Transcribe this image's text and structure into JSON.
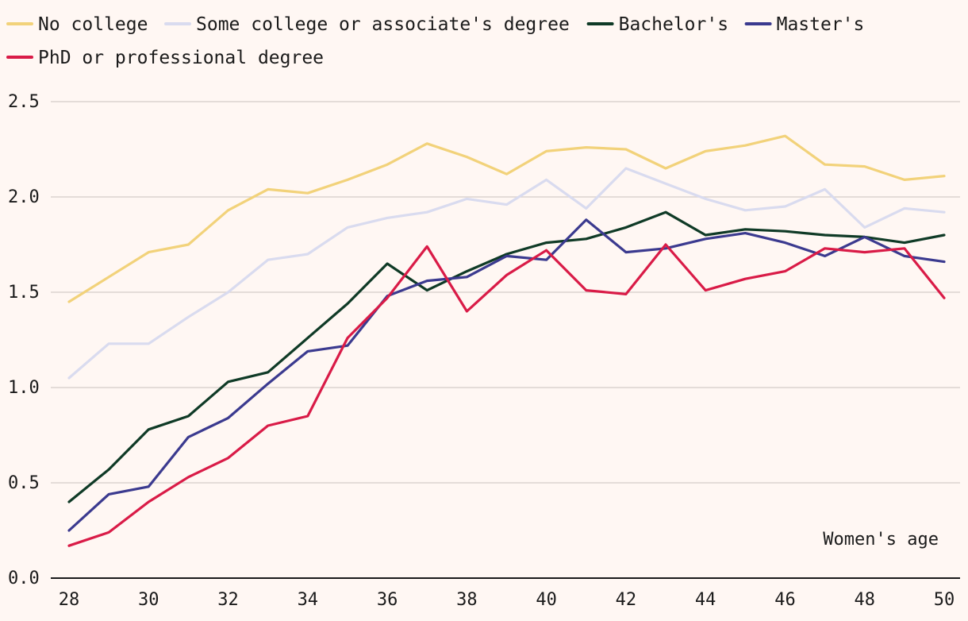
{
  "chart_data": {
    "type": "line",
    "title": "",
    "xlabel": "",
    "ylabel": "",
    "annotation": "Women's age",
    "x": [
      28,
      29,
      30,
      31,
      32,
      33,
      34,
      35,
      36,
      37,
      38,
      39,
      40,
      41,
      42,
      43,
      44,
      45,
      46,
      47,
      48,
      49,
      50
    ],
    "xlim": [
      28,
      50
    ],
    "ylim": [
      0,
      2.5
    ],
    "x_ticks": [
      "28",
      "30",
      "32",
      "34",
      "36",
      "38",
      "40",
      "42",
      "44",
      "46",
      "48",
      "50"
    ],
    "y_ticks": [
      "0.0",
      "0.5",
      "1.0",
      "1.5",
      "2.0",
      "2.5"
    ],
    "grid": "horizontal",
    "legend_position": "top",
    "series": [
      {
        "name": "No college",
        "color": "#f2d27a",
        "values": [
          1.45,
          1.58,
          1.71,
          1.75,
          1.93,
          2.04,
          2.02,
          2.09,
          2.17,
          2.28,
          2.21,
          2.12,
          2.24,
          2.26,
          2.25,
          2.15,
          2.24,
          2.27,
          2.32,
          2.17,
          2.16,
          2.09,
          2.11
        ]
      },
      {
        "name": "Some college or associate's degree",
        "color": "#d9dbef",
        "values": [
          1.05,
          1.23,
          1.23,
          1.37,
          1.5,
          1.67,
          1.7,
          1.84,
          1.89,
          1.92,
          1.99,
          1.96,
          2.09,
          1.94,
          2.15,
          2.07,
          1.99,
          1.93,
          1.95,
          2.04,
          1.84,
          1.94,
          1.92
        ]
      },
      {
        "name": "Bachelor's",
        "color": "#0f3a26",
        "values": [
          0.4,
          0.57,
          0.78,
          0.85,
          1.03,
          1.08,
          1.26,
          1.44,
          1.65,
          1.51,
          1.61,
          1.7,
          1.76,
          1.78,
          1.84,
          1.92,
          1.8,
          1.83,
          1.82,
          1.8,
          1.79,
          1.76,
          1.8
        ]
      },
      {
        "name": "Master's",
        "color": "#3b3a8f",
        "values": [
          0.25,
          0.44,
          0.48,
          0.74,
          0.84,
          1.02,
          1.19,
          1.22,
          1.48,
          1.56,
          1.58,
          1.69,
          1.67,
          1.88,
          1.71,
          1.73,
          1.78,
          1.81,
          1.76,
          1.69,
          1.79,
          1.69,
          1.66
        ]
      },
      {
        "name": "PhD or professional degree",
        "color": "#d91b47",
        "values": [
          0.17,
          0.24,
          0.4,
          0.53,
          0.63,
          0.8,
          0.85,
          1.26,
          1.47,
          1.74,
          1.4,
          1.59,
          1.72,
          1.51,
          1.49,
          1.75,
          1.51,
          1.57,
          1.61,
          1.73,
          1.71,
          1.73,
          1.47
        ]
      }
    ]
  }
}
